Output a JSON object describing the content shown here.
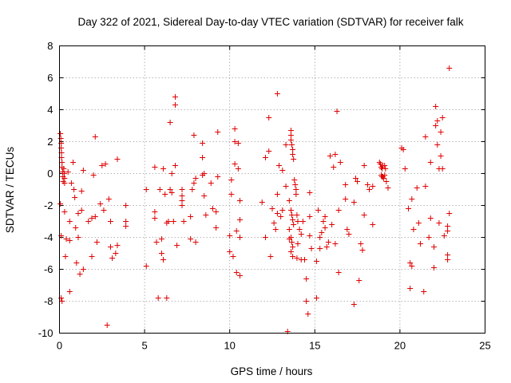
{
  "chart_data": {
    "type": "scatter",
    "title": "Day 322 of 2021, Sidereal Day-to-day VTEC variation (SDTVAR) for receiver falk",
    "xlabel": "GPS time / hours",
    "ylabel": "SDTVAR / TECUs",
    "xlim": [
      0,
      25
    ],
    "ylim": [
      -10,
      8
    ],
    "xticks": [
      "0",
      "5",
      "10",
      "15",
      "20",
      "25"
    ],
    "yticks": [
      "-10",
      "-8",
      "-6",
      "-4",
      "-2",
      "0",
      "2",
      "4",
      "6",
      "8"
    ],
    "grid": true,
    "marker": "plus",
    "color": "#e00000",
    "series": [
      {
        "name": "falk",
        "points": [
          [
            0.05,
            2.5
          ],
          [
            0.08,
            2.2
          ],
          [
            0.1,
            1.9
          ],
          [
            0.1,
            1.6
          ],
          [
            0.12,
            1.3
          ],
          [
            0.12,
            1.0
          ],
          [
            0.15,
            0.7
          ],
          [
            0.15,
            0.4
          ],
          [
            0.18,
            0.1
          ],
          [
            0.2,
            -0.2
          ],
          [
            0.22,
            -0.5
          ],
          [
            0.25,
            0.3
          ],
          [
            0.28,
            0.0
          ],
          [
            0.3,
            -0.3
          ],
          [
            0.3,
            -0.6
          ],
          [
            0.05,
            -1.9
          ],
          [
            0.1,
            -3.9
          ],
          [
            0.1,
            -7.8
          ],
          [
            0.15,
            -8.0
          ],
          [
            0.3,
            -2.4
          ],
          [
            0.35,
            -5.2
          ],
          [
            0.4,
            -4.1
          ],
          [
            0.5,
            0.1
          ],
          [
            0.6,
            -3.0
          ],
          [
            0.6,
            -4.2
          ],
          [
            0.6,
            -7.4
          ],
          [
            0.7,
            -0.6
          ],
          [
            0.8,
            0.7
          ],
          [
            0.85,
            -1.0
          ],
          [
            0.9,
            -1.5
          ],
          [
            0.95,
            -3.4
          ],
          [
            1.0,
            -5.6
          ],
          [
            1.1,
            -4.0
          ],
          [
            1.1,
            -2.5
          ],
          [
            1.2,
            -6.3
          ],
          [
            1.3,
            -1.1
          ],
          [
            1.3,
            -2.3
          ],
          [
            1.4,
            -6.0
          ],
          [
            1.4,
            0.2
          ],
          [
            1.7,
            -3.0
          ],
          [
            1.9,
            -5.2
          ],
          [
            1.9,
            -2.8
          ],
          [
            2.0,
            -0.1
          ],
          [
            2.1,
            -2.7
          ],
          [
            2.1,
            2.3
          ],
          [
            2.2,
            -4.3
          ],
          [
            2.4,
            -1.9
          ],
          [
            2.5,
            0.5
          ],
          [
            2.6,
            -2.3
          ],
          [
            2.7,
            0.6
          ],
          [
            2.8,
            -9.5
          ],
          [
            2.9,
            -1.6
          ],
          [
            3.0,
            -4.6
          ],
          [
            3.0,
            -3.0
          ],
          [
            3.1,
            -5.3
          ],
          [
            3.3,
            -5.0
          ],
          [
            3.4,
            0.9
          ],
          [
            3.4,
            -4.5
          ],
          [
            3.9,
            -3.0
          ],
          [
            3.9,
            -3.3
          ],
          [
            3.9,
            -2.0
          ],
          [
            5.1,
            -1.0
          ],
          [
            5.1,
            -5.8
          ],
          [
            5.6,
            -2.4
          ],
          [
            5.6,
            0.4
          ],
          [
            5.6,
            -2.8
          ],
          [
            5.7,
            -4.3
          ],
          [
            5.8,
            -7.8
          ],
          [
            5.9,
            -1.0
          ],
          [
            6.0,
            -4.1
          ],
          [
            6.0,
            -5.0
          ],
          [
            6.1,
            0.3
          ],
          [
            6.1,
            -5.4
          ],
          [
            6.2,
            -1.3
          ],
          [
            6.3,
            -7.8
          ],
          [
            6.3,
            -3.1
          ],
          [
            6.4,
            -3.0
          ],
          [
            6.5,
            3.2
          ],
          [
            6.5,
            -1.0
          ],
          [
            6.6,
            -1.2
          ],
          [
            6.6,
            0.0
          ],
          [
            6.7,
            -3.0
          ],
          [
            6.8,
            4.3
          ],
          [
            6.8,
            4.8
          ],
          [
            6.8,
            0.5
          ],
          [
            6.9,
            -4.5
          ],
          [
            7.2,
            -1.0
          ],
          [
            7.2,
            -1.4
          ],
          [
            7.2,
            -1.7
          ],
          [
            7.2,
            -2.0
          ],
          [
            7.3,
            -3.0
          ],
          [
            7.7,
            -2.7
          ],
          [
            7.7,
            -4.1
          ],
          [
            7.8,
            -1.0
          ],
          [
            7.9,
            2.4
          ],
          [
            7.9,
            -0.6
          ],
          [
            8.0,
            -4.3
          ],
          [
            8.0,
            -0.3
          ],
          [
            8.4,
            -0.1
          ],
          [
            8.4,
            1.0
          ],
          [
            8.4,
            1.9
          ],
          [
            8.5,
            -1.4
          ],
          [
            8.5,
            0.0
          ],
          [
            8.6,
            -2.6
          ],
          [
            8.9,
            -0.6
          ],
          [
            9.0,
            -2.2
          ],
          [
            9.2,
            -2.4
          ],
          [
            9.2,
            -3.4
          ],
          [
            9.3,
            2.6
          ],
          [
            9.3,
            -0.2
          ],
          [
            10.0,
            -3.9
          ],
          [
            10.0,
            -4.9
          ],
          [
            10.1,
            -0.4
          ],
          [
            10.1,
            -1.3
          ],
          [
            10.2,
            -5.2
          ],
          [
            10.3,
            2.8
          ],
          [
            10.3,
            2.0
          ],
          [
            10.3,
            0.6
          ],
          [
            10.4,
            -6.2
          ],
          [
            10.4,
            -3.6
          ],
          [
            10.5,
            1.9
          ],
          [
            10.5,
            0.3
          ],
          [
            10.6,
            -6.4
          ],
          [
            10.6,
            -1.7
          ],
          [
            10.6,
            -2.9
          ],
          [
            10.6,
            -4.0
          ],
          [
            11.9,
            -1.8
          ],
          [
            12.1,
            -4.0
          ],
          [
            12.1,
            1.0
          ],
          [
            12.3,
            3.5
          ],
          [
            12.3,
            1.4
          ],
          [
            12.4,
            -5.2
          ],
          [
            12.5,
            -2.2
          ],
          [
            12.6,
            -3.1
          ],
          [
            12.7,
            -3.5
          ],
          [
            12.8,
            -2.5
          ],
          [
            12.8,
            -1.3
          ],
          [
            12.8,
            5.0
          ],
          [
            12.9,
            0.5
          ],
          [
            13.0,
            -2.7
          ],
          [
            13.1,
            -2.3
          ],
          [
            13.1,
            0.2
          ],
          [
            13.3,
            -0.8
          ],
          [
            13.3,
            1.8
          ],
          [
            13.4,
            -9.9
          ],
          [
            13.5,
            -1.7
          ],
          [
            13.5,
            -3.5
          ],
          [
            13.5,
            -4.1
          ],
          [
            13.6,
            2.7
          ],
          [
            13.6,
            2.4
          ],
          [
            13.6,
            2.1
          ],
          [
            13.65,
            1.8
          ],
          [
            13.7,
            1.5
          ],
          [
            13.7,
            1.2
          ],
          [
            13.75,
            0.9
          ],
          [
            13.6,
            -2.3
          ],
          [
            13.65,
            -2.6
          ],
          [
            13.7,
            -2.9
          ],
          [
            13.75,
            -3.2
          ],
          [
            13.6,
            -4.0
          ],
          [
            13.65,
            -4.3
          ],
          [
            13.7,
            -4.6
          ],
          [
            13.6,
            -4.9
          ],
          [
            13.7,
            -5.2
          ],
          [
            13.8,
            -0.4
          ],
          [
            13.85,
            -0.7
          ],
          [
            13.9,
            -1.0
          ],
          [
            13.9,
            -1.3
          ],
          [
            13.95,
            -2.6
          ],
          [
            14.0,
            -3.0
          ],
          [
            13.95,
            -5.3
          ],
          [
            14.0,
            -4.4
          ],
          [
            14.1,
            -3.5
          ],
          [
            14.2,
            -3.8
          ],
          [
            14.2,
            -5.4
          ],
          [
            14.3,
            -3.0
          ],
          [
            14.4,
            -5.4
          ],
          [
            14.5,
            -6.6
          ],
          [
            14.5,
            -8.0
          ],
          [
            14.6,
            -8.8
          ],
          [
            14.7,
            -1.2
          ],
          [
            14.7,
            -2.7
          ],
          [
            14.7,
            -3.9
          ],
          [
            14.8,
            -4.7
          ],
          [
            15.1,
            -5.5
          ],
          [
            15.1,
            -7.8
          ],
          [
            15.2,
            -2.3
          ],
          [
            15.3,
            -4.0
          ],
          [
            15.3,
            -4.7
          ],
          [
            15.4,
            -3.7
          ],
          [
            15.5,
            -3.0
          ],
          [
            15.6,
            -2.7
          ],
          [
            15.6,
            -3.4
          ],
          [
            15.7,
            -4.6
          ],
          [
            15.8,
            -4.3
          ],
          [
            15.9,
            1.1
          ],
          [
            16.0,
            -3.2
          ],
          [
            16.1,
            0.4
          ],
          [
            16.2,
            -4.4
          ],
          [
            16.2,
            1.2
          ],
          [
            16.3,
            3.9
          ],
          [
            16.4,
            -6.2
          ],
          [
            16.4,
            -2.3
          ],
          [
            16.5,
            0.7
          ],
          [
            16.8,
            -0.7
          ],
          [
            16.8,
            -1.6
          ],
          [
            16.9,
            -3.5
          ],
          [
            17.0,
            -3.8
          ],
          [
            17.3,
            -8.2
          ],
          [
            17.3,
            -1.8
          ],
          [
            17.4,
            -0.3
          ],
          [
            17.5,
            -0.5
          ],
          [
            17.6,
            -6.7
          ],
          [
            17.7,
            -4.4
          ],
          [
            17.8,
            -4.8
          ],
          [
            17.9,
            0.5
          ],
          [
            17.9,
            -2.6
          ],
          [
            18.1,
            -0.7
          ],
          [
            18.2,
            -1.0
          ],
          [
            18.4,
            -3.2
          ],
          [
            18.4,
            -0.8
          ],
          [
            18.8,
            0.7
          ],
          [
            18.85,
            0.6
          ],
          [
            18.9,
            0.4
          ],
          [
            18.95,
            0.3
          ],
          [
            19.0,
            0.5
          ],
          [
            19.1,
            0.5
          ],
          [
            19.15,
            0.3
          ],
          [
            18.9,
            -0.1
          ],
          [
            18.95,
            -0.2
          ],
          [
            19.0,
            -0.2
          ],
          [
            19.05,
            -0.3
          ],
          [
            19.1,
            -0.1
          ],
          [
            19.2,
            -0.5
          ],
          [
            19.3,
            -0.9
          ],
          [
            20.1,
            1.6
          ],
          [
            20.2,
            1.5
          ],
          [
            20.3,
            0.3
          ],
          [
            20.5,
            -2.2
          ],
          [
            20.6,
            -5.6
          ],
          [
            20.6,
            -7.2
          ],
          [
            20.7,
            -5.8
          ],
          [
            20.7,
            -1.6
          ],
          [
            20.8,
            -3.5
          ],
          [
            21.0,
            -0.9
          ],
          [
            21.1,
            -3.1
          ],
          [
            21.2,
            -4.4
          ],
          [
            21.4,
            -7.4
          ],
          [
            21.5,
            -0.8
          ],
          [
            21.5,
            2.3
          ],
          [
            21.7,
            -4.0
          ],
          [
            21.8,
            0.7
          ],
          [
            21.8,
            -2.8
          ],
          [
            22.0,
            -4.6
          ],
          [
            22.0,
            -5.9
          ],
          [
            22.1,
            3.0
          ],
          [
            22.1,
            4.2
          ],
          [
            22.2,
            3.3
          ],
          [
            22.2,
            1.8
          ],
          [
            22.3,
            0.3
          ],
          [
            22.3,
            -3.1
          ],
          [
            22.4,
            2.6
          ],
          [
            22.4,
            1.1
          ],
          [
            22.5,
            3.5
          ],
          [
            22.5,
            0.3
          ],
          [
            22.6,
            -3.9
          ],
          [
            22.8,
            -5.4
          ],
          [
            22.8,
            -5.1
          ],
          [
            22.8,
            -3.3
          ],
          [
            22.8,
            -3.6
          ],
          [
            22.9,
            6.6
          ],
          [
            22.9,
            -2.5
          ]
        ]
      }
    ]
  }
}
